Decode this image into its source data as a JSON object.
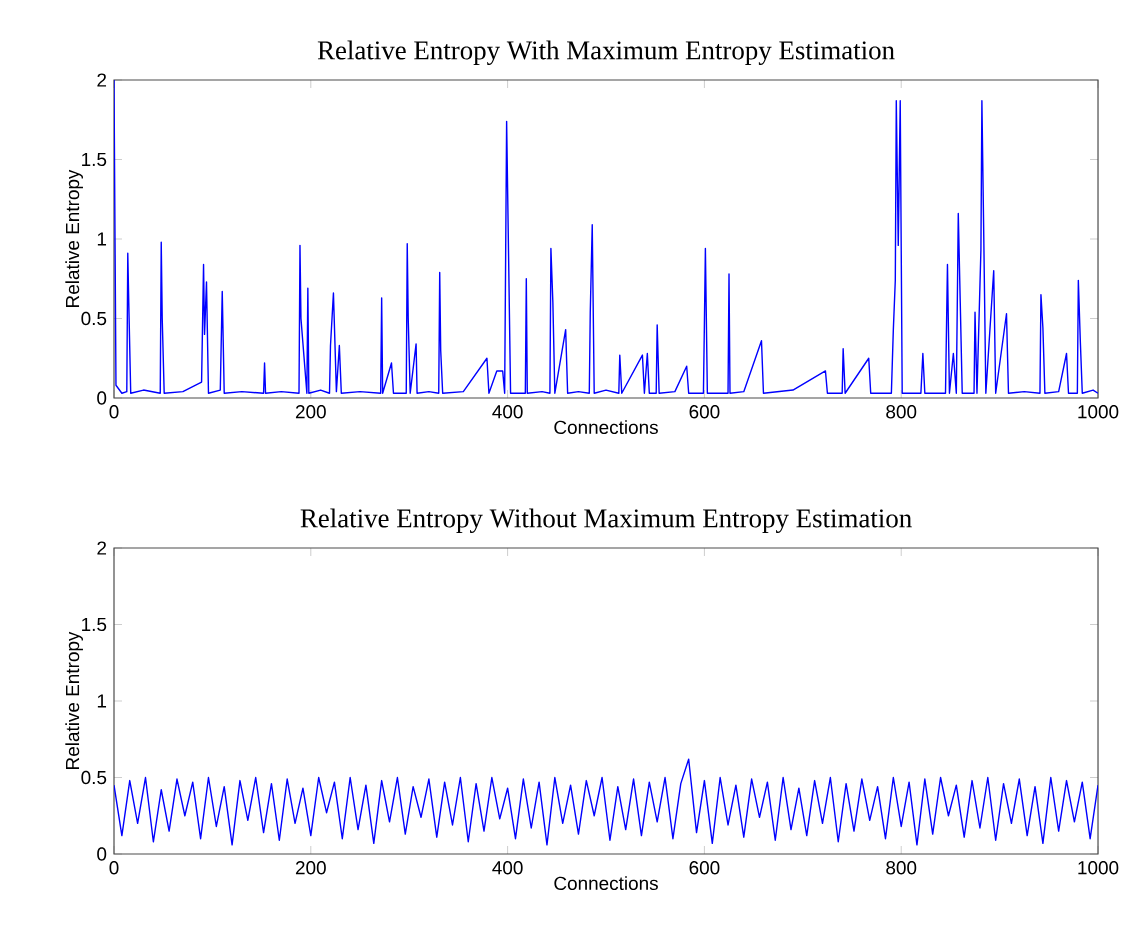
{
  "chart_data": [
    {
      "type": "line",
      "title": "Relative Entropy With Maximum Entropy Estimation",
      "xlabel": "Connections",
      "ylabel": "Relative Entropy",
      "color": "#0000ff",
      "xlim": [
        0,
        1000
      ],
      "ylim": [
        0,
        2
      ],
      "xticks": [
        0,
        200,
        400,
        600,
        800,
        1000
      ],
      "yticks": [
        0,
        0.5,
        1,
        1.5,
        2
      ],
      "x": [
        0,
        2,
        8,
        13,
        14,
        15,
        17,
        30,
        47,
        48,
        49,
        51,
        70,
        89,
        91,
        92,
        94,
        96,
        108,
        110,
        112,
        130,
        152,
        153,
        154,
        170,
        188,
        189,
        190,
        196,
        197,
        198,
        210,
        219,
        220,
        223,
        226,
        229,
        231,
        250,
        271,
        272,
        273,
        282,
        284,
        297,
        298,
        299,
        301,
        307,
        308,
        320,
        330,
        331,
        332,
        334,
        355,
        379,
        381,
        389,
        395,
        397,
        399,
        401,
        403,
        418,
        419,
        420,
        435,
        443,
        444,
        446,
        448,
        459,
        461,
        472,
        483,
        484,
        486,
        488,
        500,
        513,
        514,
        516,
        537,
        539,
        542,
        544,
        551,
        552,
        554,
        570,
        582,
        584,
        599,
        600,
        601,
        603,
        624,
        625,
        626,
        640,
        658,
        660,
        690,
        723,
        725,
        740,
        741,
        743,
        767,
        769,
        790,
        792,
        794,
        795,
        797,
        799,
        801,
        820,
        822,
        824,
        845,
        847,
        849,
        853,
        856,
        858,
        860,
        862,
        874,
        875,
        877,
        881,
        882,
        884,
        886,
        894,
        896,
        907,
        909,
        925,
        941,
        942,
        944,
        946,
        960,
        968,
        970,
        979,
        980,
        982,
        984,
        995,
        1000
      ],
      "values": [
        2.0,
        0.08,
        0.03,
        0.04,
        0.91,
        0.6,
        0.03,
        0.05,
        0.03,
        0.98,
        0.5,
        0.03,
        0.04,
        0.1,
        0.84,
        0.4,
        0.73,
        0.03,
        0.05,
        0.67,
        0.03,
        0.04,
        0.03,
        0.22,
        0.03,
        0.04,
        0.03,
        0.96,
        0.5,
        0.03,
        0.69,
        0.03,
        0.05,
        0.03,
        0.33,
        0.66,
        0.04,
        0.33,
        0.03,
        0.04,
        0.03,
        0.63,
        0.03,
        0.22,
        0.03,
        0.03,
        0.97,
        0.5,
        0.03,
        0.34,
        0.03,
        0.04,
        0.03,
        0.79,
        0.3,
        0.03,
        0.04,
        0.25,
        0.03,
        0.17,
        0.17,
        0.03,
        1.74,
        0.89,
        0.03,
        0.03,
        0.75,
        0.03,
        0.04,
        0.03,
        0.94,
        0.6,
        0.03,
        0.43,
        0.03,
        0.04,
        0.03,
        0.54,
        1.09,
        0.03,
        0.05,
        0.03,
        0.27,
        0.03,
        0.27,
        0.03,
        0.28,
        0.03,
        0.03,
        0.46,
        0.03,
        0.04,
        0.2,
        0.03,
        0.03,
        0.47,
        0.94,
        0.03,
        0.03,
        0.78,
        0.03,
        0.04,
        0.36,
        0.03,
        0.05,
        0.17,
        0.03,
        0.03,
        0.31,
        0.03,
        0.25,
        0.03,
        0.03,
        0.43,
        0.74,
        1.87,
        0.96,
        1.87,
        0.03,
        0.03,
        0.28,
        0.03,
        0.03,
        0.84,
        0.03,
        0.28,
        0.03,
        1.16,
        0.6,
        0.03,
        0.03,
        0.54,
        0.03,
        0.93,
        1.87,
        0.97,
        0.03,
        0.8,
        0.03,
        0.53,
        0.03,
        0.04,
        0.03,
        0.65,
        0.44,
        0.03,
        0.04,
        0.28,
        0.03,
        0.03,
        0.74,
        0.36,
        0.03,
        0.05,
        0.03
      ]
    },
    {
      "type": "line",
      "title": "Relative Entropy Without Maximum Entropy Estimation",
      "xlabel": "Connections",
      "ylabel": "Relative Entropy",
      "color": "#0000ff",
      "xlim": [
        0,
        1000
      ],
      "ylim": [
        0,
        2
      ],
      "xticks": [
        0,
        200,
        400,
        600,
        800,
        1000
      ],
      "yticks": [
        0,
        0.5,
        1,
        1.5,
        2
      ],
      "x": [
        0,
        8,
        16,
        24,
        32,
        40,
        48,
        56,
        64,
        72,
        80,
        88,
        96,
        104,
        112,
        120,
        128,
        136,
        144,
        152,
        160,
        168,
        176,
        184,
        192,
        200,
        208,
        216,
        224,
        232,
        240,
        248,
        256,
        264,
        272,
        280,
        288,
        296,
        304,
        312,
        320,
        328,
        336,
        344,
        352,
        360,
        368,
        376,
        384,
        392,
        400,
        408,
        416,
        424,
        432,
        440,
        448,
        456,
        464,
        472,
        480,
        488,
        496,
        504,
        512,
        520,
        528,
        536,
        544,
        552,
        560,
        568,
        576,
        584,
        592,
        600,
        608,
        616,
        624,
        632,
        640,
        648,
        656,
        664,
        672,
        680,
        688,
        696,
        704,
        712,
        720,
        728,
        736,
        744,
        752,
        760,
        768,
        776,
        784,
        792,
        800,
        808,
        816,
        824,
        832,
        840,
        848,
        856,
        864,
        872,
        880,
        888,
        896,
        904,
        912,
        920,
        928,
        936,
        944,
        952,
        960,
        968,
        976,
        984,
        992,
        1000
      ],
      "values": [
        0.45,
        0.12,
        0.48,
        0.2,
        0.5,
        0.08,
        0.42,
        0.15,
        0.49,
        0.25,
        0.47,
        0.1,
        0.5,
        0.18,
        0.44,
        0.06,
        0.48,
        0.22,
        0.5,
        0.14,
        0.46,
        0.09,
        0.49,
        0.2,
        0.43,
        0.12,
        0.5,
        0.27,
        0.47,
        0.1,
        0.5,
        0.16,
        0.45,
        0.07,
        0.48,
        0.21,
        0.5,
        0.13,
        0.44,
        0.24,
        0.49,
        0.11,
        0.47,
        0.19,
        0.5,
        0.08,
        0.46,
        0.15,
        0.5,
        0.23,
        0.43,
        0.1,
        0.49,
        0.17,
        0.47,
        0.06,
        0.5,
        0.2,
        0.45,
        0.13,
        0.48,
        0.25,
        0.5,
        0.09,
        0.44,
        0.16,
        0.49,
        0.12,
        0.47,
        0.21,
        0.5,
        0.1,
        0.46,
        0.62,
        0.14,
        0.48,
        0.07,
        0.5,
        0.19,
        0.45,
        0.11,
        0.49,
        0.24,
        0.47,
        0.09,
        0.5,
        0.16,
        0.43,
        0.12,
        0.48,
        0.2,
        0.5,
        0.08,
        0.46,
        0.15,
        0.49,
        0.22,
        0.44,
        0.1,
        0.5,
        0.18,
        0.47,
        0.06,
        0.49,
        0.13,
        0.5,
        0.25,
        0.45,
        0.11,
        0.48,
        0.17,
        0.5,
        0.09,
        0.46,
        0.2,
        0.49,
        0.12,
        0.44,
        0.07,
        0.5,
        0.15,
        0.48,
        0.21,
        0.47,
        0.1,
        0.45
      ]
    }
  ]
}
